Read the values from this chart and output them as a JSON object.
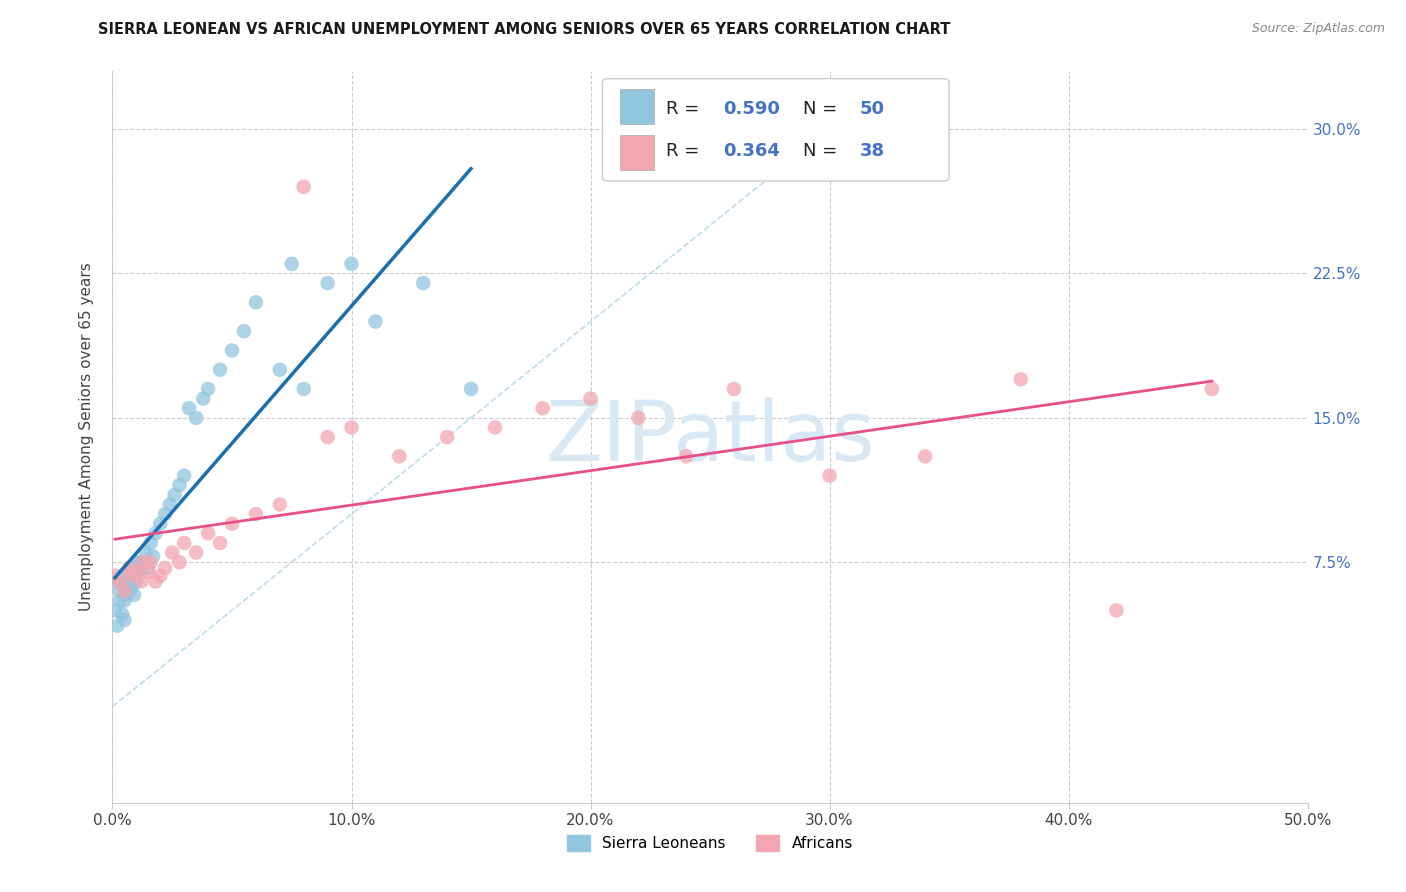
{
  "title": "SIERRA LEONEAN VS AFRICAN UNEMPLOYMENT AMONG SENIORS OVER 65 YEARS CORRELATION CHART",
  "source": "Source: ZipAtlas.com",
  "ylabel": "Unemployment Among Seniors over 65 years",
  "xlim": [
    0.0,
    0.5
  ],
  "ylim": [
    -0.05,
    0.33
  ],
  "xticks": [
    0.0,
    0.1,
    0.2,
    0.3,
    0.4,
    0.5
  ],
  "xticklabels": [
    "0.0%",
    "10.0%",
    "20.0%",
    "30.0%",
    "40.0%",
    "50.0%"
  ],
  "yticks": [
    0.075,
    0.15,
    0.225,
    0.3
  ],
  "yticklabels": [
    "7.5%",
    "15.0%",
    "22.5%",
    "30.0%"
  ],
  "blue_color": "#92c5de",
  "pink_color": "#f4a6b0",
  "regression_blue_color": "#1a6faf",
  "regression_pink_color": "#e8508a",
  "dashed_color": "#92c5de",
  "watermark": "ZIPatlas",
  "watermark_color": "#d8e8f5",
  "background_color": "#ffffff",
  "grid_color": "#cccccc",
  "blue_R": 0.59,
  "blue_N": 50,
  "pink_R": 0.364,
  "pink_N": 38,
  "sierra_x": [
    0.001,
    0.002,
    0.002,
    0.003,
    0.003,
    0.004,
    0.004,
    0.005,
    0.005,
    0.005,
    0.006,
    0.006,
    0.007,
    0.007,
    0.008,
    0.008,
    0.009,
    0.009,
    0.01,
    0.01,
    0.011,
    0.012,
    0.013,
    0.014,
    0.015,
    0.016,
    0.017,
    0.018,
    0.02,
    0.022,
    0.024,
    0.026,
    0.028,
    0.03,
    0.032,
    0.035,
    0.038,
    0.04,
    0.045,
    0.05,
    0.055,
    0.06,
    0.07,
    0.075,
    0.08,
    0.09,
    0.1,
    0.11,
    0.13,
    0.15
  ],
  "sierra_y": [
    0.05,
    0.042,
    0.065,
    0.055,
    0.06,
    0.048,
    0.068,
    0.045,
    0.055,
    0.062,
    0.058,
    0.065,
    0.06,
    0.07,
    0.062,
    0.072,
    0.058,
    0.068,
    0.065,
    0.075,
    0.07,
    0.075,
    0.072,
    0.08,
    0.072,
    0.085,
    0.078,
    0.09,
    0.095,
    0.1,
    0.105,
    0.11,
    0.115,
    0.12,
    0.155,
    0.15,
    0.16,
    0.165,
    0.175,
    0.185,
    0.195,
    0.21,
    0.175,
    0.23,
    0.165,
    0.22,
    0.23,
    0.2,
    0.22,
    0.165
  ],
  "african_x": [
    0.001,
    0.003,
    0.005,
    0.007,
    0.008,
    0.01,
    0.012,
    0.013,
    0.015,
    0.016,
    0.018,
    0.02,
    0.022,
    0.025,
    0.028,
    0.03,
    0.035,
    0.04,
    0.045,
    0.05,
    0.06,
    0.07,
    0.08,
    0.09,
    0.1,
    0.12,
    0.14,
    0.16,
    0.18,
    0.2,
    0.22,
    0.24,
    0.26,
    0.3,
    0.34,
    0.38,
    0.42,
    0.46
  ],
  "african_y": [
    0.068,
    0.065,
    0.06,
    0.072,
    0.068,
    0.07,
    0.065,
    0.075,
    0.07,
    0.075,
    0.065,
    0.068,
    0.072,
    0.08,
    0.075,
    0.085,
    0.08,
    0.09,
    0.085,
    0.095,
    0.1,
    0.105,
    0.27,
    0.14,
    0.145,
    0.13,
    0.14,
    0.145,
    0.155,
    0.16,
    0.15,
    0.13,
    0.165,
    0.12,
    0.13,
    0.17,
    0.05,
    0.165
  ]
}
